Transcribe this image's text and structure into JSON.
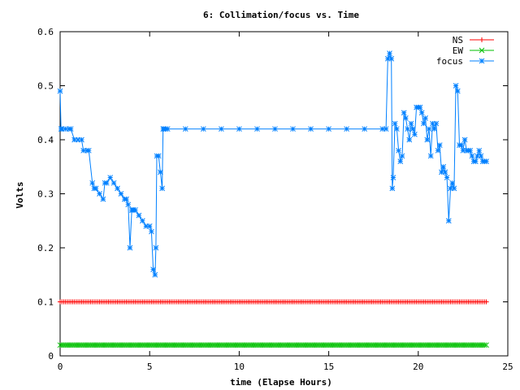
{
  "chart_data": {
    "type": "line",
    "title": "6: Collimation/focus vs. Time",
    "xlabel": "time (Elapse Hours)",
    "ylabel": "Volts",
    "xlim": [
      0,
      25
    ],
    "ylim": [
      0,
      0.6
    ],
    "xticks": [
      0,
      5,
      10,
      15,
      20,
      25
    ],
    "yticks": [
      0,
      0.1,
      0.2,
      0.3,
      0.4,
      0.5,
      0.6
    ],
    "xtick_labels": [
      "0",
      "5",
      "10",
      "15",
      "20",
      "25"
    ],
    "ytick_labels": [
      "0",
      "0.1",
      "0.2",
      "0.3",
      "0.4",
      "0.5",
      "0.6"
    ],
    "grid": false,
    "legend_position": "top-right",
    "series": [
      {
        "name": "NS",
        "color": "#ff0000",
        "marker": "plus",
        "x_range": [
          0,
          23.8
        ],
        "x_step": 0.1,
        "constant": 0.1
      },
      {
        "name": "EW",
        "color": "#00c000",
        "marker": "cross",
        "x_range": [
          0,
          23.8
        ],
        "x_step": 0.1,
        "constant": 0.02
      },
      {
        "name": "focus",
        "color": "#0080ff",
        "marker": "star",
        "x": [
          0,
          0.05,
          0.1,
          0.3,
          0.5,
          0.6,
          0.8,
          1.0,
          1.2,
          1.3,
          1.5,
          1.6,
          1.8,
          1.9,
          2.0,
          2.2,
          2.4,
          2.5,
          2.6,
          2.8,
          3.0,
          3.2,
          3.4,
          3.6,
          3.7,
          3.8,
          3.9,
          4.0,
          4.05,
          4.1,
          4.2,
          4.4,
          4.6,
          4.8,
          5.0,
          5.1,
          5.2,
          5.3,
          5.35,
          5.4,
          5.5,
          5.6,
          5.7,
          5.75,
          5.8,
          5.9,
          6.0,
          7.0,
          8.0,
          9.0,
          10.0,
          11.0,
          12.0,
          13.0,
          14.0,
          15.0,
          16.0,
          17.0,
          18.0,
          18.2,
          18.3,
          18.4,
          18.5,
          18.55,
          18.6,
          18.7,
          18.8,
          18.9,
          19.0,
          19.1,
          19.2,
          19.3,
          19.4,
          19.5,
          19.6,
          19.7,
          19.8,
          19.9,
          20.0,
          20.1,
          20.2,
          20.3,
          20.4,
          20.5,
          20.6,
          20.7,
          20.8,
          20.9,
          21.0,
          21.1,
          21.2,
          21.3,
          21.4,
          21.5,
          21.6,
          21.7,
          21.8,
          21.9,
          22.0,
          22.1,
          22.2,
          22.3,
          22.4,
          22.5,
          22.6,
          22.7,
          22.8,
          22.9,
          23.0,
          23.1,
          23.2,
          23.3,
          23.4,
          23.5,
          23.6,
          23.7,
          23.8
        ],
        "y": [
          0.49,
          0.42,
          0.42,
          0.42,
          0.42,
          0.42,
          0.4,
          0.4,
          0.4,
          0.38,
          0.38,
          0.38,
          0.32,
          0.31,
          0.31,
          0.3,
          0.29,
          0.32,
          0.32,
          0.33,
          0.32,
          0.31,
          0.3,
          0.29,
          0.29,
          0.28,
          0.2,
          0.27,
          0.27,
          0.27,
          0.27,
          0.26,
          0.25,
          0.24,
          0.24,
          0.23,
          0.16,
          0.15,
          0.2,
          0.37,
          0.37,
          0.34,
          0.31,
          0.42,
          0.42,
          0.42,
          0.42,
          0.42,
          0.42,
          0.42,
          0.42,
          0.42,
          0.42,
          0.42,
          0.42,
          0.42,
          0.42,
          0.42,
          0.42,
          0.42,
          0.55,
          0.56,
          0.55,
          0.31,
          0.33,
          0.43,
          0.42,
          0.38,
          0.36,
          0.37,
          0.45,
          0.44,
          0.42,
          0.4,
          0.43,
          0.42,
          0.41,
          0.46,
          0.46,
          0.46,
          0.45,
          0.43,
          0.44,
          0.4,
          0.42,
          0.37,
          0.43,
          0.42,
          0.43,
          0.38,
          0.39,
          0.34,
          0.35,
          0.34,
          0.33,
          0.25,
          0.31,
          0.32,
          0.31,
          0.5,
          0.49,
          0.39,
          0.39,
          0.38,
          0.4,
          0.38,
          0.38,
          0.38,
          0.37,
          0.36,
          0.36,
          0.37,
          0.38,
          0.37,
          0.36,
          0.36,
          0.36
        ]
      }
    ]
  }
}
